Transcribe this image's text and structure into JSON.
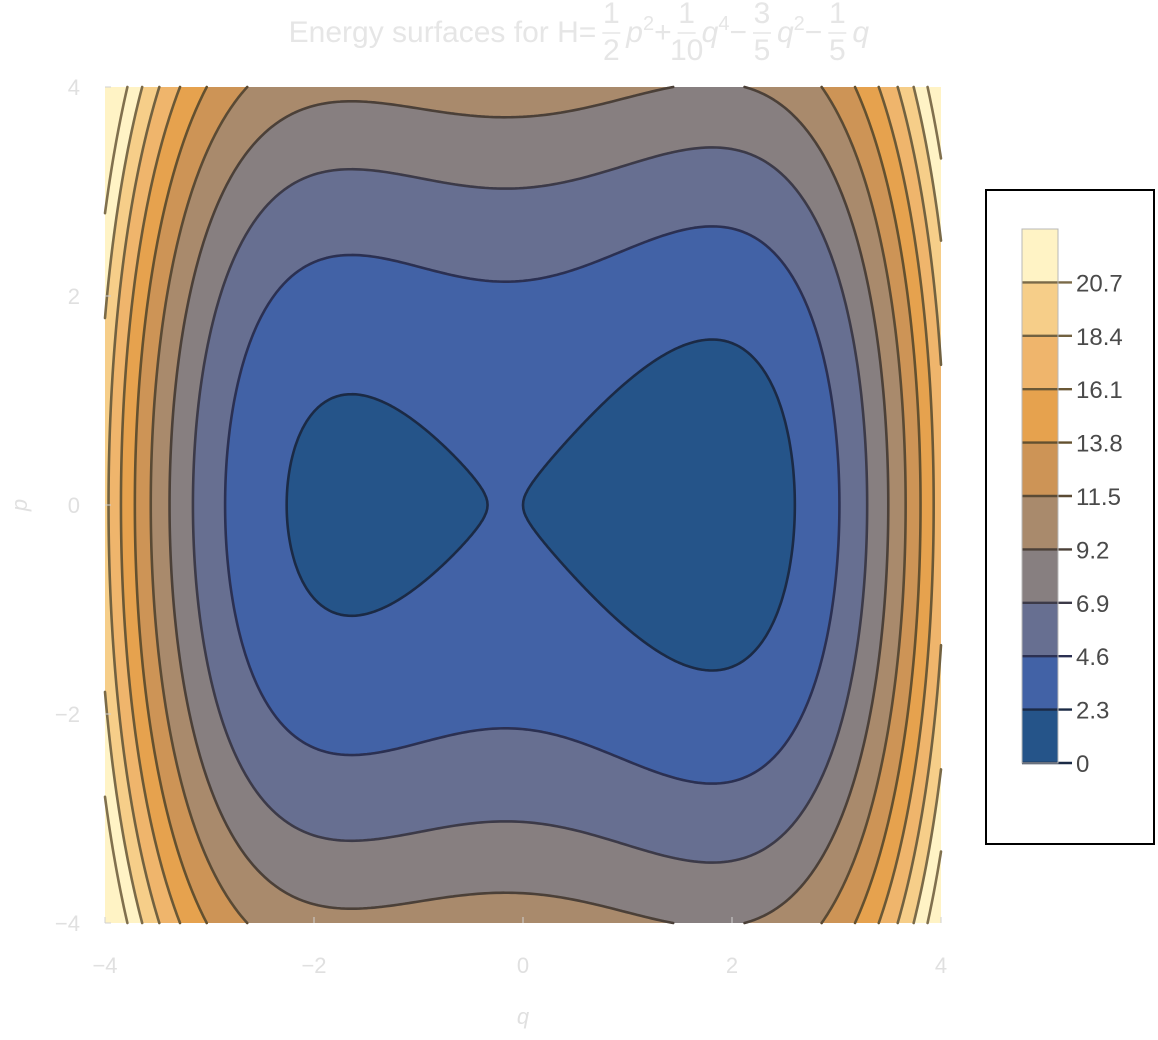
{
  "chart_data": {
    "type": "contour",
    "title": {
      "prefix": "Energy surfaces for H=",
      "terms": [
        {
          "sign": "",
          "num": "1",
          "den": "2",
          "var": "p",
          "exp": "2"
        },
        {
          "sign": "+",
          "num": "1",
          "den": "10",
          "var": "q",
          "exp": "4"
        },
        {
          "sign": "−",
          "num": "3",
          "den": "5",
          "var": "q",
          "exp": "2"
        },
        {
          "sign": "−",
          "num": "1",
          "den": "5",
          "var": "q",
          "exp": ""
        }
      ]
    },
    "function": {
      "p2": 0.5,
      "q4": 0.1,
      "q2": -0.6,
      "q1": -0.2
    },
    "xlabel": "q",
    "ylabel": "p",
    "xlim": [
      -4,
      4
    ],
    "ylim": [
      -4,
      4
    ],
    "xticks": [
      -4,
      -2,
      0,
      2,
      4
    ],
    "yticks": [
      -4,
      -2,
      0,
      2,
      4
    ],
    "xtick_labels": [
      "−4",
      "−2",
      "0",
      "2",
      "4"
    ],
    "ytick_labels": [
      "−4",
      "−2",
      "0",
      "2",
      "4"
    ],
    "contour_levels": [
      0,
      2.3,
      4.6,
      6.9,
      9.2,
      11.5,
      13.8,
      16.1,
      18.4,
      20.7
    ],
    "legend_labels": [
      "20.7",
      "18.4",
      "16.1",
      "13.8",
      "11.5",
      "9.2",
      "6.9",
      "4.6",
      "2.3",
      "0"
    ],
    "band_colors": [
      "#255489",
      "#4262a6",
      "#676f91",
      "#877f80",
      "#a98a6c",
      "#cd9456",
      "#e6a24e",
      "#efb56c",
      "#f6ce89",
      "#fff3c5"
    ],
    "line_colors": [
      "#1b2a45",
      "#2b3052",
      "#3c3a48",
      "#4b4038",
      "#5a4a34",
      "#63502f",
      "#6a5836",
      "#716140",
      "#7a6a48",
      "#80704e"
    ],
    "legend_placement": "right",
    "grid": false
  }
}
